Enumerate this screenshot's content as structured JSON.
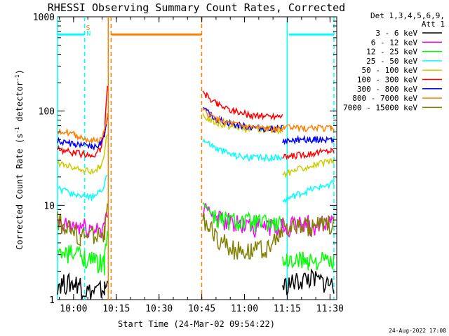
{
  "chart_data": {
    "type": "line",
    "title": "RHESSI Observing Summary Count Rates, Corrected",
    "xlabel": "Start Time (24-Mar-02 09:54:22)",
    "ylabel": "Corrected Count Rate (s⁻¹ detector⁻¹)",
    "ylabel_main": "Corrected Count Rate (s",
    "ylabel_sup1": "-1",
    "ylabel_mid": " detector",
    "ylabel_sup2": "-1",
    "ylabel_end": ")",
    "x_unit": "minutes after 09:54:22",
    "xlim": [
      0,
      98
    ],
    "ylim": [
      1,
      1000
    ],
    "yscale": "log",
    "x_ticks": [
      {
        "label": "10:00",
        "value": 5.63
      },
      {
        "label": "10:15",
        "value": 20.63
      },
      {
        "label": "10:30",
        "value": 35.63
      },
      {
        "label": "10:45",
        "value": 50.63
      },
      {
        "label": "11:00",
        "value": 65.63
      },
      {
        "label": "11:15",
        "value": 80.63
      },
      {
        "label": "11:30",
        "value": 95.63
      }
    ],
    "y_ticks": [
      {
        "label": "1",
        "value": 1
      },
      {
        "label": "10",
        "value": 10
      },
      {
        "label": "100",
        "value": 100
      },
      {
        "label": "1000",
        "value": 1000
      }
    ],
    "legend_header": [
      "Det 1,3,4,5,6,9,",
      "Att 1"
    ],
    "series": [
      {
        "name": "3 - 6 keV",
        "color": "#000000",
        "points": [
          [
            0,
            1.5
          ],
          [
            8,
            1.5
          ],
          [
            8.5,
            1.3
          ],
          [
            12,
            1.2
          ],
          [
            16.5,
            1.3
          ],
          [
            17.5,
            1.5
          ]
        ],
        "points2": [
          [
            79,
            1.4
          ],
          [
            88,
            1.7
          ],
          [
            95,
            1.5
          ],
          [
            97,
            1.4
          ]
        ]
      },
      {
        "name": "6 - 12 keV",
        "color": "#ff00ff",
        "points": [
          [
            0,
            6
          ],
          [
            8,
            6.0
          ],
          [
            12,
            5.6
          ],
          [
            16.5,
            6.0
          ],
          [
            17.5,
            8
          ]
        ],
        "points2": [
          [
            51,
            8
          ],
          [
            52,
            10
          ],
          [
            56,
            7
          ],
          [
            70,
            6
          ],
          [
            79,
            6
          ]
        ],
        "points3": [
          [
            79,
            6
          ],
          [
            88,
            6.3
          ],
          [
            97,
            6.2
          ]
        ]
      },
      {
        "name": "12 - 25 keV",
        "color": "#00ff00",
        "points": [
          [
            0,
            3
          ],
          [
            8,
            3.1
          ],
          [
            12,
            2.6
          ],
          [
            16.5,
            2.4
          ],
          [
            17.5,
            6
          ]
        ],
        "points2": [
          [
            51,
            11
          ],
          [
            53,
            9
          ],
          [
            56,
            7
          ],
          [
            79,
            6.2
          ]
        ],
        "points3": [
          [
            79,
            2.5
          ],
          [
            88,
            2.7
          ],
          [
            97,
            2.5
          ]
        ]
      },
      {
        "name": "25 - 50 keV",
        "color": "#00ffff",
        "points": [
          [
            0,
            15
          ],
          [
            6,
            13
          ],
          [
            12,
            12
          ],
          [
            15,
            14
          ],
          [
            16.5,
            17
          ],
          [
            17.5,
            22
          ]
        ],
        "points2": [
          [
            51,
            50
          ],
          [
            56,
            40
          ],
          [
            62,
            34
          ],
          [
            68,
            32
          ],
          [
            75,
            32
          ],
          [
            79,
            33
          ]
        ],
        "points3": [
          [
            79,
            11
          ],
          [
            84,
            13
          ],
          [
            90,
            15
          ],
          [
            96,
            17
          ],
          [
            97,
            17
          ]
        ]
      },
      {
        "name": "50 - 100 keV",
        "color": "#cccc00",
        "points": [
          [
            0,
            28
          ],
          [
            6,
            25
          ],
          [
            12,
            23
          ],
          [
            15,
            26
          ],
          [
            16.5,
            35
          ],
          [
            17.5,
            60
          ]
        ],
        "points2": [
          [
            51,
            88
          ],
          [
            56,
            74
          ],
          [
            62,
            67
          ],
          [
            68,
            64
          ],
          [
            75,
            63
          ],
          [
            79,
            63
          ]
        ],
        "points3": [
          [
            79,
            21
          ],
          [
            84,
            24
          ],
          [
            90,
            27
          ],
          [
            96,
            29
          ],
          [
            97,
            29
          ]
        ]
      },
      {
        "name": "100 - 300 keV",
        "color": "#ff0000",
        "points": [
          [
            0,
            40
          ],
          [
            6,
            36
          ],
          [
            12,
            34
          ],
          [
            15,
            38
          ],
          [
            16.5,
            60
          ],
          [
            17.5,
            200
          ]
        ],
        "points2": [
          [
            51,
            155
          ],
          [
            56,
            120
          ],
          [
            62,
            100
          ],
          [
            68,
            90
          ],
          [
            75,
            88
          ],
          [
            79,
            90
          ]
        ],
        "points3": [
          [
            79,
            32
          ],
          [
            84,
            34
          ],
          [
            90,
            36
          ],
          [
            96,
            38
          ],
          [
            97,
            38
          ]
        ]
      },
      {
        "name": "300 - 800 keV",
        "color": "#0000ff",
        "points": [
          [
            0,
            48
          ],
          [
            6,
            44
          ],
          [
            12,
            42
          ],
          [
            15,
            45
          ],
          [
            16.5,
            55
          ],
          [
            17.5,
            80
          ]
        ],
        "points2": [
          [
            51,
            105
          ],
          [
            56,
            82
          ],
          [
            62,
            72
          ],
          [
            68,
            67
          ],
          [
            75,
            65
          ],
          [
            79,
            66
          ]
        ],
        "points3": [
          [
            79,
            48
          ],
          [
            84,
            50
          ],
          [
            90,
            50
          ],
          [
            96,
            50
          ],
          [
            97,
            50
          ]
        ]
      },
      {
        "name": "800 - 7000 keV",
        "color": "#ff8000",
        "points": [
          [
            0,
            63
          ],
          [
            6,
            56
          ],
          [
            12,
            48
          ],
          [
            15,
            50
          ],
          [
            16.5,
            60
          ],
          [
            17.5,
            90
          ]
        ],
        "points2": [
          [
            51,
            100
          ],
          [
            56,
            82
          ],
          [
            62,
            72
          ],
          [
            68,
            67
          ],
          [
            75,
            64
          ],
          [
            79,
            64
          ]
        ],
        "points3": [
          [
            79,
            67
          ],
          [
            84,
            66
          ],
          [
            90,
            66
          ],
          [
            96,
            66
          ],
          [
            97,
            66
          ]
        ]
      },
      {
        "name": "7000 - 15000 keV",
        "color": "#808000",
        "points": [
          [
            0,
            7
          ],
          [
            8,
            4.6
          ],
          [
            12,
            5
          ],
          [
            16.5,
            5
          ],
          [
            17.5,
            10
          ]
        ],
        "points2": [
          [
            51,
            7
          ],
          [
            53,
            6
          ],
          [
            56,
            4.5
          ],
          [
            62,
            3.5
          ],
          [
            68,
            3.4
          ],
          [
            74,
            3.5
          ],
          [
            79,
            5
          ]
        ],
        "points3": [
          [
            79,
            6
          ],
          [
            88,
            6
          ],
          [
            97,
            6.5
          ]
        ]
      }
    ],
    "attenuator_level": 650,
    "attenuator_segments": [
      {
        "start": 0,
        "end": 9.5,
        "color": "#00ffff"
      },
      {
        "start": 18.8,
        "end": 50.6,
        "color": "#ff8000"
      },
      {
        "start": 81.2,
        "end": 97,
        "color": "#00ffff"
      }
    ],
    "vertical_markers": [
      {
        "x": 0.0,
        "color": "#00ffff",
        "dashed": false
      },
      {
        "x": 9.5,
        "color": "#00ffff",
        "dashed": true
      },
      {
        "x": 17.8,
        "color": "#ff8000",
        "dashed": false
      },
      {
        "x": 18.8,
        "color": "#ff8000",
        "dashed": true
      },
      {
        "x": 50.6,
        "color": "#ff8000",
        "dashed": true
      },
      {
        "x": 80.6,
        "color": "#00ffff",
        "dashed": false
      },
      {
        "x": 97.0,
        "color": "#00ffff",
        "dashed": true
      }
    ],
    "flags": [
      {
        "text": "S",
        "x": 10.7,
        "color": "#ff8000",
        "row": "top"
      },
      {
        "text": "N",
        "x": 10.9,
        "color": "#00ffff",
        "row": "bottom"
      }
    ]
  },
  "footer": {
    "date_stamp": "24-Aug-2022 17:08"
  }
}
